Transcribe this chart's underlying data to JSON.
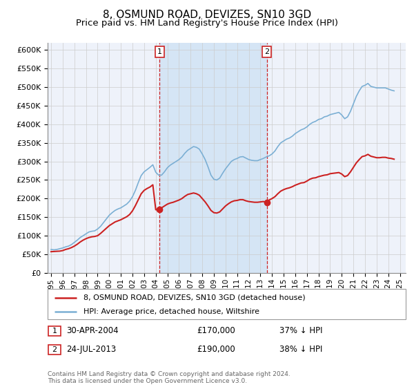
{
  "title": "8, OSMUND ROAD, DEVIZES, SN10 3GD",
  "subtitle": "Price paid vs. HM Land Registry's House Price Index (HPI)",
  "legend_label_red": "8, OSMUND ROAD, DEVIZES, SN10 3GD (detached house)",
  "legend_label_blue": "HPI: Average price, detached house, Wiltshire",
  "transaction1_date": "30-APR-2004",
  "transaction1_price": "£170,000",
  "transaction1_hpi": "37% ↓ HPI",
  "transaction1_year": 2004.33,
  "transaction1_value": 170000,
  "transaction2_date": "24-JUL-2013",
  "transaction2_price": "£190,000",
  "transaction2_hpi": "38% ↓ HPI",
  "transaction2_year": 2013.55,
  "transaction2_value": 190000,
  "footer_line1": "Contains HM Land Registry data © Crown copyright and database right 2024.",
  "footer_line2": "This data is licensed under the Open Government Licence v3.0.",
  "ylim": [
    0,
    620000
  ],
  "xlim_start": 1994.7,
  "xlim_end": 2025.5,
  "bg_color": "#eef2fa",
  "shaded_color": "#d5e5f5",
  "red_color": "#cc2222",
  "blue_color": "#7bafd4",
  "grid_color": "#cccccc",
  "ytick_labels": [
    "£0",
    "£50K",
    "£100K",
    "£150K",
    "£200K",
    "£250K",
    "£300K",
    "£350K",
    "£400K",
    "£450K",
    "£500K",
    "£550K",
    "£600K"
  ],
  "ytick_values": [
    0,
    50000,
    100000,
    150000,
    200000,
    250000,
    300000,
    350000,
    400000,
    450000,
    500000,
    550000,
    600000
  ],
  "hpi_years": [
    1995.0,
    1995.25,
    1995.5,
    1995.75,
    1996.0,
    1996.25,
    1996.5,
    1996.75,
    1997.0,
    1997.25,
    1997.5,
    1997.75,
    1998.0,
    1998.25,
    1998.5,
    1998.75,
    1999.0,
    1999.25,
    1999.5,
    1999.75,
    2000.0,
    2000.25,
    2000.5,
    2000.75,
    2001.0,
    2001.25,
    2001.5,
    2001.75,
    2002.0,
    2002.25,
    2002.5,
    2002.75,
    2003.0,
    2003.25,
    2003.5,
    2003.75,
    2004.0,
    2004.25,
    2004.5,
    2004.75,
    2005.0,
    2005.25,
    2005.5,
    2005.75,
    2006.0,
    2006.25,
    2006.5,
    2006.75,
    2007.0,
    2007.25,
    2007.5,
    2007.75,
    2008.0,
    2008.25,
    2008.5,
    2008.75,
    2009.0,
    2009.25,
    2009.5,
    2009.75,
    2010.0,
    2010.25,
    2010.5,
    2010.75,
    2011.0,
    2011.25,
    2011.5,
    2011.75,
    2012.0,
    2012.25,
    2012.5,
    2012.75,
    2013.0,
    2013.25,
    2013.5,
    2013.75,
    2014.0,
    2014.25,
    2014.5,
    2014.75,
    2015.0,
    2015.25,
    2015.5,
    2015.75,
    2016.0,
    2016.25,
    2016.5,
    2016.75,
    2017.0,
    2017.25,
    2017.5,
    2017.75,
    2018.0,
    2018.25,
    2018.5,
    2018.75,
    2019.0,
    2019.25,
    2019.5,
    2019.75,
    2020.0,
    2020.25,
    2020.5,
    2020.75,
    2021.0,
    2021.25,
    2021.5,
    2021.75,
    2022.0,
    2022.25,
    2022.5,
    2022.75,
    2023.0,
    2023.25,
    2023.5,
    2023.75,
    2024.0,
    2024.25,
    2024.5
  ],
  "hpi_values": [
    63000,
    62000,
    63000,
    65000,
    67000,
    70000,
    72000,
    76000,
    82000,
    88000,
    95000,
    100000,
    105000,
    110000,
    112000,
    113000,
    118000,
    125000,
    135000,
    145000,
    155000,
    162000,
    168000,
    172000,
    175000,
    180000,
    185000,
    193000,
    205000,
    222000,
    243000,
    262000,
    272000,
    278000,
    284000,
    291000,
    271000,
    263000,
    263000,
    272000,
    283000,
    290000,
    295000,
    300000,
    305000,
    312000,
    322000,
    330000,
    335000,
    340000,
    338000,
    333000,
    320000,
    305000,
    285000,
    263000,
    252000,
    250000,
    255000,
    268000,
    280000,
    290000,
    300000,
    305000,
    308000,
    312000,
    313000,
    309000,
    305000,
    303000,
    302000,
    302000,
    305000,
    308000,
    312000,
    315000,
    320000,
    328000,
    340000,
    350000,
    355000,
    360000,
    363000,
    368000,
    375000,
    380000,
    385000,
    388000,
    393000,
    400000,
    405000,
    408000,
    413000,
    415000,
    420000,
    422000,
    426000,
    428000,
    430000,
    432000,
    425000,
    415000,
    420000,
    435000,
    455000,
    475000,
    490000,
    502000,
    505000,
    510000,
    502000,
    500000,
    498000,
    498000,
    498000,
    498000,
    495000,
    492000,
    490000
  ],
  "price_years": [
    1995.0,
    1995.25,
    1995.5,
    1995.75,
    1996.0,
    1996.25,
    1996.5,
    1996.75,
    1997.0,
    1997.25,
    1997.5,
    1997.75,
    1998.0,
    1998.25,
    1998.5,
    1998.75,
    1999.0,
    1999.25,
    1999.5,
    1999.75,
    2000.0,
    2000.25,
    2000.5,
    2000.75,
    2001.0,
    2001.25,
    2001.5,
    2001.75,
    2002.0,
    2002.25,
    2002.5,
    2002.75,
    2003.0,
    2003.25,
    2003.5,
    2003.75,
    2004.0,
    2004.33,
    2004.5,
    2004.75,
    2005.0,
    2005.25,
    2005.5,
    2005.75,
    2006.0,
    2006.25,
    2006.5,
    2006.75,
    2007.0,
    2007.25,
    2007.5,
    2007.75,
    2008.0,
    2008.25,
    2008.5,
    2008.75,
    2009.0,
    2009.25,
    2009.5,
    2009.75,
    2010.0,
    2010.25,
    2010.5,
    2010.75,
    2011.0,
    2011.25,
    2011.5,
    2011.75,
    2012.0,
    2012.25,
    2012.5,
    2012.75,
    2013.0,
    2013.25,
    2013.55,
    2013.75,
    2014.0,
    2014.25,
    2014.5,
    2014.75,
    2015.0,
    2015.25,
    2015.5,
    2015.75,
    2016.0,
    2016.25,
    2016.5,
    2016.75,
    2017.0,
    2017.25,
    2017.5,
    2017.75,
    2018.0,
    2018.25,
    2018.5,
    2018.75,
    2019.0,
    2019.25,
    2019.5,
    2019.75,
    2020.0,
    2020.25,
    2020.5,
    2020.75,
    2021.0,
    2021.25,
    2021.5,
    2021.75,
    2022.0,
    2022.25,
    2022.5,
    2022.75,
    2023.0,
    2023.25,
    2023.5,
    2023.75,
    2024.0,
    2024.25,
    2024.5
  ],
  "price_values": [
    57000,
    57500,
    58000,
    58500,
    60000,
    63000,
    65000,
    68000,
    72000,
    77000,
    83000,
    88000,
    92000,
    95000,
    97000,
    98000,
    100000,
    106000,
    113000,
    120000,
    127000,
    132000,
    137000,
    140000,
    143000,
    147000,
    151000,
    157000,
    167000,
    181000,
    197000,
    213000,
    222000,
    227000,
    231000,
    237000,
    170000,
    170000,
    175000,
    180000,
    185000,
    188000,
    190000,
    193000,
    196000,
    200000,
    206000,
    211000,
    213000,
    215000,
    213000,
    209000,
    200000,
    191000,
    180000,
    168000,
    162000,
    161000,
    164000,
    172000,
    180000,
    186000,
    191000,
    194000,
    195000,
    197000,
    197000,
    194000,
    192000,
    191000,
    190000,
    190000,
    191000,
    192000,
    190000,
    196000,
    200000,
    205000,
    213000,
    220000,
    224000,
    227000,
    229000,
    232000,
    236000,
    239000,
    242000,
    243000,
    247000,
    252000,
    255000,
    256000,
    259000,
    261000,
    263000,
    264000,
    267000,
    268000,
    269000,
    270000,
    266000,
    259000,
    262000,
    272000,
    284000,
    296000,
    305000,
    313000,
    315000,
    319000,
    314000,
    312000,
    310000,
    310000,
    311000,
    311000,
    309000,
    308000,
    306000
  ]
}
